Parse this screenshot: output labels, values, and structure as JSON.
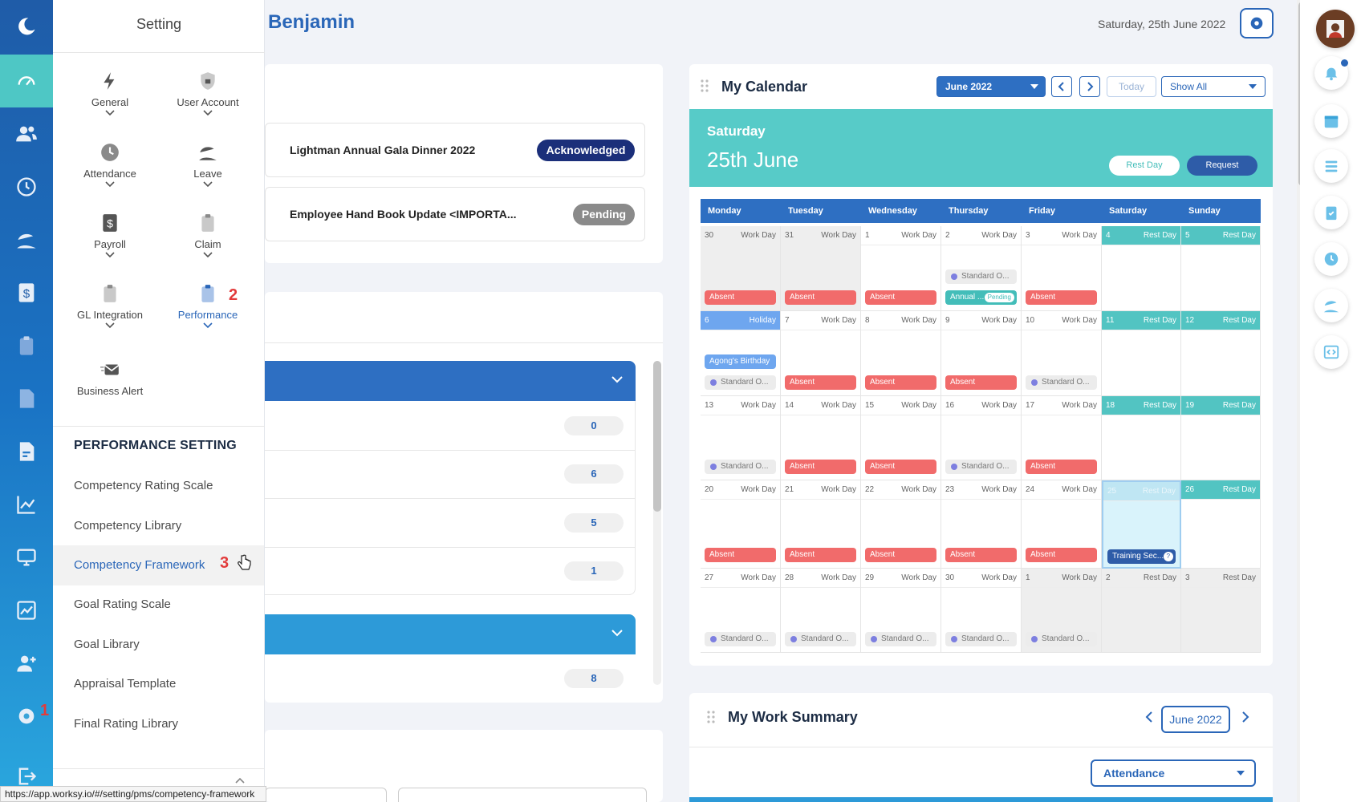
{
  "header": {
    "name": "Benjamin",
    "date": "Saturday, 25th June 2022"
  },
  "setting_panel": {
    "title": "Setting",
    "items": [
      {
        "label": "General",
        "icon": "lightning-icon"
      },
      {
        "label": "User Account",
        "icon": "shield-lock-icon"
      },
      {
        "label": "Attendance",
        "icon": "clock-icon"
      },
      {
        "label": "Leave",
        "icon": "beach-umbrella-icon"
      },
      {
        "label": "Payroll",
        "icon": "dollar-doc-icon"
      },
      {
        "label": "Claim",
        "icon": "clipboard-icon"
      },
      {
        "label": "GL Integration",
        "icon": "clipboard-icon"
      },
      {
        "label": "Performance",
        "icon": "clipboard-check-icon"
      },
      {
        "label": "Business Alert",
        "icon": "envelope-icon"
      }
    ],
    "badge_performance": "2",
    "section_title": "PERFORMANCE SETTING",
    "section_items": [
      "Competency Rating Scale",
      "Competency Library",
      "Competency Framework",
      "Goal Rating Scale",
      "Goal Library",
      "Appraisal Template",
      "Final Rating Library"
    ],
    "badge_framework": "3"
  },
  "rail": {
    "badge_settings": "1"
  },
  "announcements": [
    {
      "title": "Lightman Annual Gala Dinner 2022",
      "status": "Acknowledged",
      "color": "#1b2f7a"
    },
    {
      "title": "Employee Hand Book Update <IMPORTA...",
      "status": "Pending",
      "color": "#8a8a8a"
    }
  ],
  "counts": [
    "0",
    "6",
    "5",
    "1",
    "8"
  ],
  "calendar": {
    "title": "My Calendar",
    "month_select": "June 2022",
    "today_label": "Today",
    "filter": "Show All",
    "band_day": "Saturday",
    "band_date": "25th June",
    "rest_day_btn": "Rest Day",
    "request_btn": "Request",
    "weekdays": [
      "Monday",
      "Tuesday",
      "Wednesday",
      "Thursday",
      "Friday",
      "Saturday",
      "Sunday"
    ],
    "weeks": [
      [
        {
          "n": "30",
          "t": "Work Day",
          "g": true,
          "e": [
            {
              "k": "red",
              "l": "Absent"
            }
          ]
        },
        {
          "n": "31",
          "t": "Work Day",
          "g": true,
          "e": [
            {
              "k": "red",
              "l": "Absent"
            }
          ]
        },
        {
          "n": "1",
          "t": "Work Day",
          "e": [
            {
              "k": "red",
              "l": "Absent"
            }
          ]
        },
        {
          "n": "2",
          "t": "Work Day",
          "e": [
            {
              "k": "std",
              "l": "Standard O..."
            },
            {
              "k": "teal",
              "l": "Annual ...",
              "extra": "Pending"
            }
          ]
        },
        {
          "n": "3",
          "t": "Work Day",
          "e": [
            {
              "k": "red",
              "l": "Absent"
            }
          ]
        },
        {
          "n": "4",
          "t": "Rest Day",
          "r": true,
          "e": []
        },
        {
          "n": "5",
          "t": "Rest Day",
          "r": true,
          "e": []
        }
      ],
      [
        {
          "n": "6",
          "t": "Holiday",
          "h": true,
          "e": [
            {
              "k": "blue",
              "l": "Agong's Birthday"
            },
            {
              "k": "std",
              "l": "Standard O..."
            }
          ]
        },
        {
          "n": "7",
          "t": "Work Day",
          "e": [
            {
              "k": "red",
              "l": "Absent"
            }
          ]
        },
        {
          "n": "8",
          "t": "Work Day",
          "e": [
            {
              "k": "red",
              "l": "Absent"
            }
          ]
        },
        {
          "n": "9",
          "t": "Work Day",
          "e": [
            {
              "k": "red",
              "l": "Absent"
            }
          ]
        },
        {
          "n": "10",
          "t": "Work Day",
          "e": [
            {
              "k": "std",
              "l": "Standard O..."
            }
          ]
        },
        {
          "n": "11",
          "t": "Rest Day",
          "r": true,
          "e": []
        },
        {
          "n": "12",
          "t": "Rest Day",
          "r": true,
          "e": []
        }
      ],
      [
        {
          "n": "13",
          "t": "Work Day",
          "e": [
            {
              "k": "std",
              "l": "Standard O..."
            }
          ]
        },
        {
          "n": "14",
          "t": "Work Day",
          "e": [
            {
              "k": "red",
              "l": "Absent"
            }
          ]
        },
        {
          "n": "15",
          "t": "Work Day",
          "e": [
            {
              "k": "red",
              "l": "Absent"
            }
          ]
        },
        {
          "n": "16",
          "t": "Work Day",
          "e": [
            {
              "k": "std",
              "l": "Standard O..."
            }
          ]
        },
        {
          "n": "17",
          "t": "Work Day",
          "e": [
            {
              "k": "red",
              "l": "Absent"
            }
          ]
        },
        {
          "n": "18",
          "t": "Rest Day",
          "r": true,
          "e": []
        },
        {
          "n": "19",
          "t": "Rest Day",
          "r": true,
          "e": []
        }
      ],
      [
        {
          "n": "20",
          "t": "Work Day",
          "e": [
            {
              "k": "red",
              "l": "Absent"
            }
          ]
        },
        {
          "n": "21",
          "t": "Work Day",
          "e": [
            {
              "k": "red",
              "l": "Absent"
            }
          ]
        },
        {
          "n": "22",
          "t": "Work Day",
          "e": [
            {
              "k": "red",
              "l": "Absent"
            }
          ]
        },
        {
          "n": "23",
          "t": "Work Day",
          "e": [
            {
              "k": "red",
              "l": "Absent"
            }
          ]
        },
        {
          "n": "24",
          "t": "Work Day",
          "e": [
            {
              "k": "red",
              "l": "Absent"
            }
          ]
        },
        {
          "n": "25",
          "t": "Rest Day",
          "r": true,
          "today": true,
          "e": [
            {
              "k": "navy",
              "l": "Training Sec...",
              "extra": "?"
            }
          ]
        },
        {
          "n": "26",
          "t": "Rest Day",
          "r": true,
          "e": []
        }
      ],
      [
        {
          "n": "27",
          "t": "Work Day",
          "e": [
            {
              "k": "std",
              "l": "Standard O..."
            }
          ]
        },
        {
          "n": "28",
          "t": "Work Day",
          "e": [
            {
              "k": "std",
              "l": "Standard O..."
            }
          ]
        },
        {
          "n": "29",
          "t": "Work Day",
          "e": [
            {
              "k": "std",
              "l": "Standard O..."
            }
          ]
        },
        {
          "n": "30",
          "t": "Work Day",
          "e": [
            {
              "k": "std",
              "l": "Standard O..."
            }
          ]
        },
        {
          "n": "1",
          "t": "Work Day",
          "g": true,
          "e": [
            {
              "k": "std",
              "l": "Standard O..."
            }
          ]
        },
        {
          "n": "2",
          "t": "Rest Day",
          "g": true,
          "e": []
        },
        {
          "n": "3",
          "t": "Rest Day",
          "g": true,
          "e": []
        }
      ]
    ]
  },
  "work_summary": {
    "title": "My Work Summary",
    "month": "June 2022",
    "select": "Attendance"
  },
  "status_url": "https://app.worksy.io/#/setting/pms/competency-framework"
}
